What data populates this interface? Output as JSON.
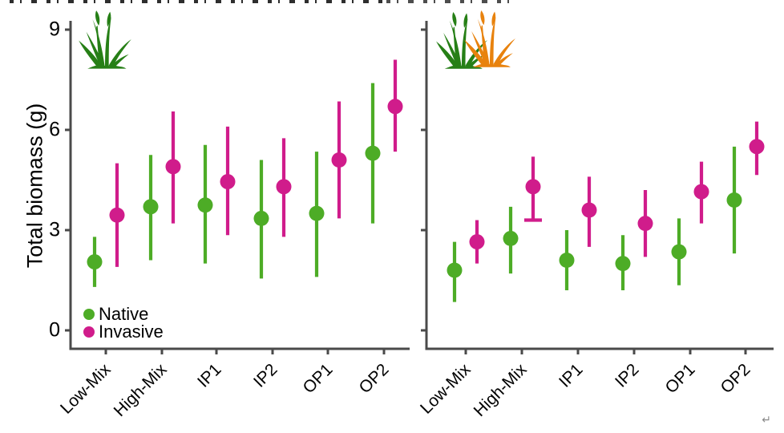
{
  "figure": {
    "ylabel": "Total biomass (g)",
    "trailing_mark": "↵",
    "colors": {
      "native": "#4dac26",
      "invasive": "#d01c8b",
      "axis": "#4a4a4a",
      "text": "#000000",
      "icon_green": "#267f16",
      "icon_orange": "#e8820d"
    },
    "legend": {
      "position": "bottom-left-of-first-panel",
      "items": [
        {
          "label": "Native",
          "key": "native"
        },
        {
          "label": "Invasive",
          "key": "invasive"
        }
      ]
    }
  },
  "chart_data": [
    {
      "type": "scatter",
      "panel": "native-community",
      "panel_icon": "green-grass-icon",
      "categories": [
        "Low-Mix",
        "High-Mix",
        "IP1",
        "IP2",
        "OP1",
        "OP2"
      ],
      "ylim": [
        0,
        9
      ],
      "yticks": [
        0,
        3,
        6,
        9
      ],
      "grid": false,
      "series": [
        {
          "name": "Native",
          "key": "native",
          "values": [
            2.05,
            3.7,
            3.75,
            3.35,
            3.5,
            5.3
          ],
          "ci_low": [
            1.3,
            2.1,
            2.0,
            1.55,
            1.6,
            3.2
          ],
          "ci_high": [
            2.8,
            5.25,
            5.55,
            5.1,
            5.35,
            7.4
          ]
        },
        {
          "name": "Invasive",
          "key": "invasive",
          "values": [
            3.45,
            4.9,
            4.45,
            4.3,
            5.1,
            6.7
          ],
          "ci_low": [
            1.9,
            3.2,
            2.85,
            2.8,
            3.35,
            5.35
          ],
          "ci_high": [
            5.0,
            6.55,
            6.1,
            5.75,
            6.85,
            8.1
          ]
        }
      ]
    },
    {
      "type": "scatter",
      "panel": "mixed-community",
      "panel_icon": "green-orange-grass-icon",
      "categories": [
        "Low-Mix",
        "High-Mix",
        "IP1",
        "IP2",
        "OP1",
        "OP2"
      ],
      "ylim": [
        0,
        9
      ],
      "yticks": [
        0,
        3,
        6,
        9
      ],
      "grid": false,
      "series": [
        {
          "name": "Native",
          "key": "native",
          "values": [
            1.8,
            2.75,
            2.1,
            2.0,
            2.35,
            3.9
          ],
          "ci_low": [
            0.85,
            1.7,
            1.2,
            1.2,
            1.35,
            2.3
          ],
          "ci_high": [
            2.65,
            3.7,
            3.0,
            2.85,
            3.35,
            5.5
          ]
        },
        {
          "name": "Invasive",
          "key": "invasive",
          "values": [
            2.65,
            4.3,
            3.6,
            3.2,
            4.15,
            5.5
          ],
          "ci_low": [
            2.0,
            3.3,
            2.5,
            2.2,
            3.2,
            4.65
          ],
          "ci_high": [
            3.3,
            5.2,
            4.6,
            4.2,
            5.05,
            6.25
          ],
          "cap_low": [
            false,
            true,
            false,
            false,
            false,
            false
          ]
        }
      ]
    }
  ]
}
